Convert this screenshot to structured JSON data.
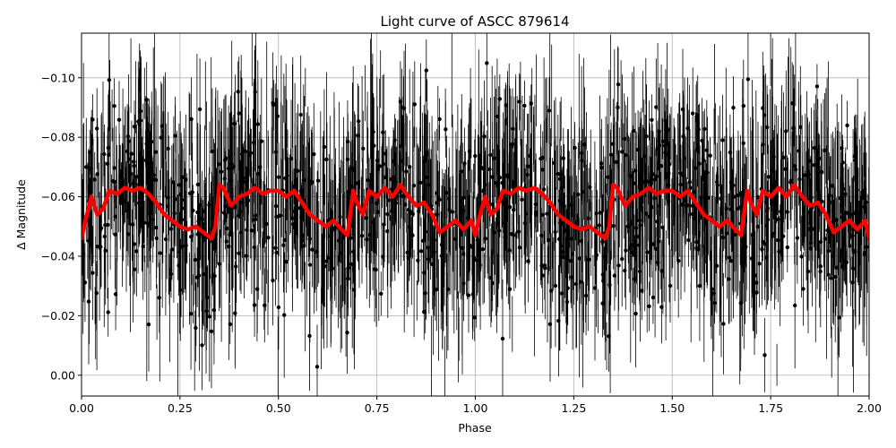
{
  "chart_data": {
    "type": "scatter",
    "title": "Light curve of ASCC 879614",
    "xlabel": "Phase",
    "ylabel": "Δ Magnitude",
    "xlim": [
      0.0,
      2.0
    ],
    "ylim": [
      0.007,
      -0.115
    ],
    "y_inverted": true,
    "grid": true,
    "x_ticks": [
      0.0,
      0.25,
      0.5,
      0.75,
      1.0,
      1.25,
      1.5,
      1.75,
      2.0
    ],
    "x_tick_labels": [
      "0.00",
      "0.25",
      "0.50",
      "0.75",
      "1.00",
      "1.25",
      "1.50",
      "1.75",
      "2.00"
    ],
    "y_ticks": [
      0.0,
      -0.02,
      -0.04,
      -0.06,
      -0.08,
      -0.1
    ],
    "y_tick_labels": [
      "0.00",
      "−0.02",
      "−0.04",
      "−0.06",
      "−0.08",
      "−0.10"
    ],
    "series": [
      {
        "kind": "scatter_errorbar",
        "color": "#000000",
        "description_note": "dense photometric points with error bars, scatter roughly -0.11 to 0.01 around the binned curve"
      },
      {
        "kind": "line",
        "color": "#ff0000",
        "x": [
          0.0,
          0.01,
          0.025,
          0.04,
          0.055,
          0.07,
          0.09,
          0.11,
          0.13,
          0.15,
          0.17,
          0.19,
          0.21,
          0.23,
          0.25,
          0.27,
          0.29,
          0.31,
          0.33,
          0.34,
          0.35,
          0.36,
          0.38,
          0.4,
          0.42,
          0.44,
          0.46,
          0.48,
          0.5,
          0.52,
          0.54,
          0.56,
          0.58,
          0.6,
          0.62,
          0.64,
          0.66,
          0.675,
          0.69,
          0.7,
          0.715,
          0.73,
          0.75,
          0.77,
          0.79,
          0.81,
          0.83,
          0.85,
          0.87,
          0.89,
          0.91,
          0.93,
          0.95,
          0.97,
          0.99,
          1.0,
          1.01,
          1.025,
          1.04,
          1.055,
          1.07,
          1.09,
          1.11,
          1.13,
          1.15,
          1.17,
          1.19,
          1.21,
          1.23,
          1.25,
          1.27,
          1.29,
          1.31,
          1.33,
          1.34,
          1.35,
          1.36,
          1.38,
          1.4,
          1.42,
          1.44,
          1.46,
          1.48,
          1.5,
          1.52,
          1.54,
          1.56,
          1.58,
          1.6,
          1.62,
          1.64,
          1.66,
          1.675,
          1.69,
          1.7,
          1.715,
          1.73,
          1.75,
          1.77,
          1.79,
          1.81,
          1.83,
          1.85,
          1.87,
          1.89,
          1.91,
          1.93,
          1.95,
          1.97,
          1.99,
          2.0
        ],
        "y": [
          -0.046,
          -0.052,
          -0.06,
          -0.054,
          -0.056,
          -0.062,
          -0.061,
          -0.063,
          -0.062,
          -0.063,
          -0.061,
          -0.058,
          -0.054,
          -0.052,
          -0.05,
          -0.049,
          -0.05,
          -0.048,
          -0.046,
          -0.05,
          -0.064,
          -0.063,
          -0.057,
          -0.06,
          -0.061,
          -0.063,
          -0.061,
          -0.062,
          -0.062,
          -0.06,
          -0.062,
          -0.058,
          -0.054,
          -0.052,
          -0.05,
          -0.052,
          -0.049,
          -0.047,
          -0.062,
          -0.058,
          -0.054,
          -0.062,
          -0.06,
          -0.063,
          -0.06,
          -0.064,
          -0.06,
          -0.057,
          -0.058,
          -0.054,
          -0.048,
          -0.05,
          -0.052,
          -0.049,
          -0.052,
          -0.047,
          -0.053,
          -0.06,
          -0.054,
          -0.056,
          -0.062,
          -0.061,
          -0.063,
          -0.062,
          -0.063,
          -0.061,
          -0.058,
          -0.054,
          -0.052,
          -0.05,
          -0.049,
          -0.05,
          -0.048,
          -0.046,
          -0.05,
          -0.064,
          -0.063,
          -0.057,
          -0.06,
          -0.061,
          -0.063,
          -0.061,
          -0.062,
          -0.062,
          -0.06,
          -0.062,
          -0.058,
          -0.054,
          -0.052,
          -0.05,
          -0.052,
          -0.049,
          -0.047,
          -0.062,
          -0.058,
          -0.054,
          -0.062,
          -0.06,
          -0.063,
          -0.06,
          -0.064,
          -0.06,
          -0.057,
          -0.058,
          -0.054,
          -0.048,
          -0.05,
          -0.052,
          -0.049,
          -0.052,
          -0.046
        ]
      }
    ]
  }
}
